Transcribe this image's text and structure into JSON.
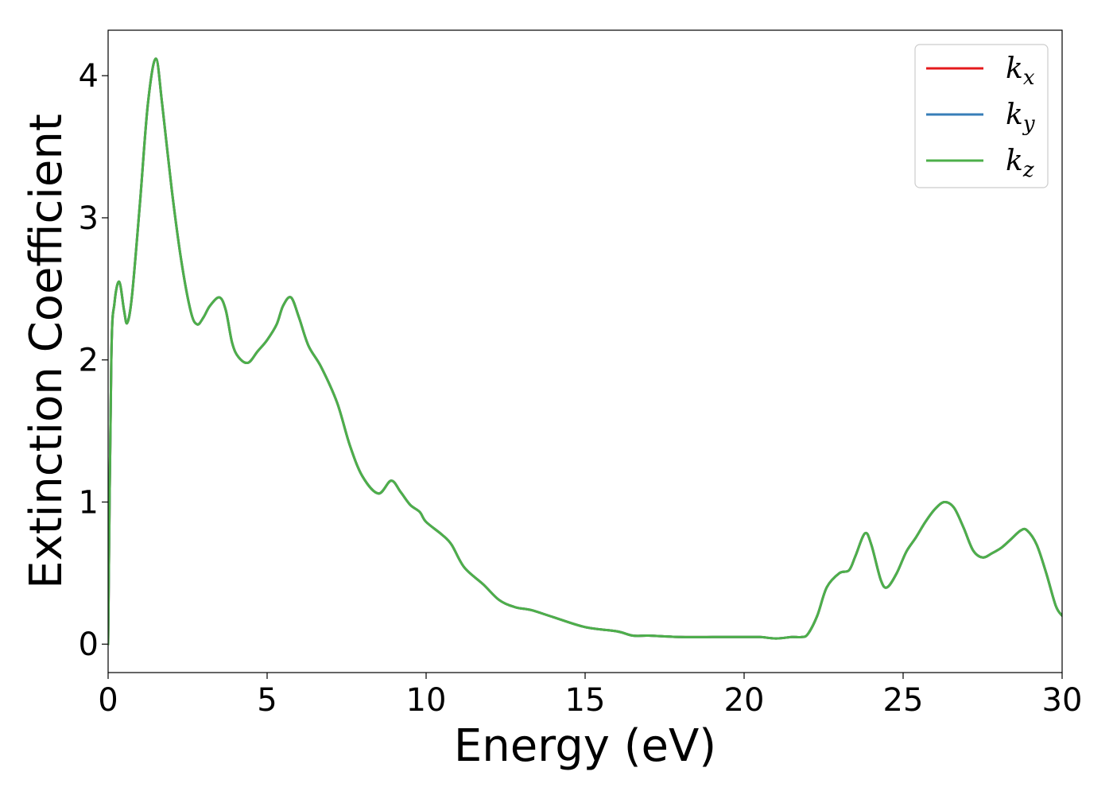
{
  "chart_data": {
    "type": "line",
    "title": "",
    "xlabel": "Energy (eV)",
    "ylabel": "Extinction Coefficient",
    "xlim": [
      0,
      30
    ],
    "ylim": [
      -0.2,
      4.32
    ],
    "xticks": [
      0,
      5,
      10,
      15,
      20,
      25,
      30
    ],
    "yticks": [
      0,
      1,
      2,
      3,
      4
    ],
    "grid": false,
    "legend_position": "top-right",
    "x": [
      0,
      0.1,
      0.2,
      0.35,
      0.5,
      0.6,
      0.75,
      1.0,
      1.25,
      1.5,
      1.7,
      2.0,
      2.3,
      2.6,
      2.8,
      3.0,
      3.2,
      3.5,
      3.7,
      3.9,
      4.1,
      4.4,
      4.7,
      5.0,
      5.3,
      5.5,
      5.75,
      6.0,
      6.3,
      6.7,
      7.2,
      7.6,
      8.0,
      8.5,
      8.9,
      9.2,
      9.5,
      9.8,
      10.0,
      10.5,
      10.8,
      11.2,
      11.8,
      12.3,
      12.8,
      13.3,
      14.0,
      15.0,
      16.0,
      16.5,
      17.0,
      18.0,
      19.0,
      20.0,
      20.5,
      21.0,
      21.5,
      21.8,
      22.0,
      22.3,
      22.6,
      23.0,
      23.3,
      23.5,
      23.8,
      24.0,
      24.3,
      24.5,
      24.8,
      25.1,
      25.4,
      25.7,
      26.0,
      26.3,
      26.6,
      26.9,
      27.2,
      27.5,
      27.8,
      28.1,
      28.4,
      28.7,
      28.9,
      29.2,
      29.5,
      29.8,
      30.0
    ],
    "series": [
      {
        "name": "k_x",
        "color": "#e41a1c",
        "values": [
          0,
          2.0,
          2.4,
          2.55,
          2.35,
          2.26,
          2.45,
          3.1,
          3.8,
          4.12,
          3.8,
          3.2,
          2.7,
          2.34,
          2.25,
          2.3,
          2.38,
          2.44,
          2.35,
          2.12,
          2.02,
          1.98,
          2.06,
          2.14,
          2.25,
          2.38,
          2.44,
          2.3,
          2.1,
          1.95,
          1.7,
          1.4,
          1.18,
          1.06,
          1.15,
          1.07,
          0.98,
          0.93,
          0.86,
          0.77,
          0.7,
          0.54,
          0.42,
          0.31,
          0.26,
          0.24,
          0.19,
          0.12,
          0.09,
          0.06,
          0.06,
          0.05,
          0.05,
          0.05,
          0.05,
          0.04,
          0.05,
          0.05,
          0.07,
          0.2,
          0.4,
          0.5,
          0.52,
          0.62,
          0.78,
          0.7,
          0.45,
          0.4,
          0.5,
          0.65,
          0.75,
          0.86,
          0.95,
          1.0,
          0.96,
          0.82,
          0.66,
          0.61,
          0.64,
          0.68,
          0.74,
          0.8,
          0.8,
          0.7,
          0.5,
          0.27,
          0.2
        ]
      },
      {
        "name": "k_y",
        "color": "#377eb8",
        "values": [
          0,
          2.0,
          2.4,
          2.55,
          2.35,
          2.26,
          2.45,
          3.1,
          3.8,
          4.12,
          3.8,
          3.2,
          2.7,
          2.34,
          2.25,
          2.3,
          2.38,
          2.44,
          2.35,
          2.12,
          2.02,
          1.98,
          2.06,
          2.14,
          2.25,
          2.38,
          2.44,
          2.3,
          2.1,
          1.95,
          1.7,
          1.4,
          1.18,
          1.06,
          1.15,
          1.07,
          0.98,
          0.93,
          0.86,
          0.77,
          0.7,
          0.54,
          0.42,
          0.31,
          0.26,
          0.24,
          0.19,
          0.12,
          0.09,
          0.06,
          0.06,
          0.05,
          0.05,
          0.05,
          0.05,
          0.04,
          0.05,
          0.05,
          0.07,
          0.2,
          0.4,
          0.5,
          0.52,
          0.62,
          0.78,
          0.7,
          0.45,
          0.4,
          0.5,
          0.65,
          0.75,
          0.86,
          0.95,
          1.0,
          0.96,
          0.82,
          0.66,
          0.61,
          0.64,
          0.68,
          0.74,
          0.8,
          0.8,
          0.7,
          0.5,
          0.27,
          0.2
        ]
      },
      {
        "name": "k_z",
        "color": "#4daf4a",
        "values": [
          0,
          2.0,
          2.4,
          2.55,
          2.35,
          2.26,
          2.45,
          3.1,
          3.8,
          4.12,
          3.8,
          3.2,
          2.7,
          2.34,
          2.25,
          2.3,
          2.38,
          2.44,
          2.35,
          2.12,
          2.02,
          1.98,
          2.06,
          2.14,
          2.25,
          2.38,
          2.44,
          2.3,
          2.1,
          1.95,
          1.7,
          1.4,
          1.18,
          1.06,
          1.15,
          1.07,
          0.98,
          0.93,
          0.86,
          0.77,
          0.7,
          0.54,
          0.42,
          0.31,
          0.26,
          0.24,
          0.19,
          0.12,
          0.09,
          0.06,
          0.06,
          0.05,
          0.05,
          0.05,
          0.05,
          0.04,
          0.05,
          0.05,
          0.07,
          0.2,
          0.4,
          0.5,
          0.52,
          0.62,
          0.78,
          0.7,
          0.45,
          0.4,
          0.5,
          0.65,
          0.75,
          0.86,
          0.95,
          1.0,
          0.96,
          0.82,
          0.66,
          0.61,
          0.64,
          0.68,
          0.74,
          0.8,
          0.8,
          0.7,
          0.5,
          0.27,
          0.2
        ]
      }
    ],
    "legend": [
      {
        "base": "k",
        "sub": "x",
        "color": "#e41a1c"
      },
      {
        "base": "k",
        "sub": "y",
        "color": "#377eb8"
      },
      {
        "base": "k",
        "sub": "z",
        "color": "#4daf4a"
      }
    ]
  }
}
